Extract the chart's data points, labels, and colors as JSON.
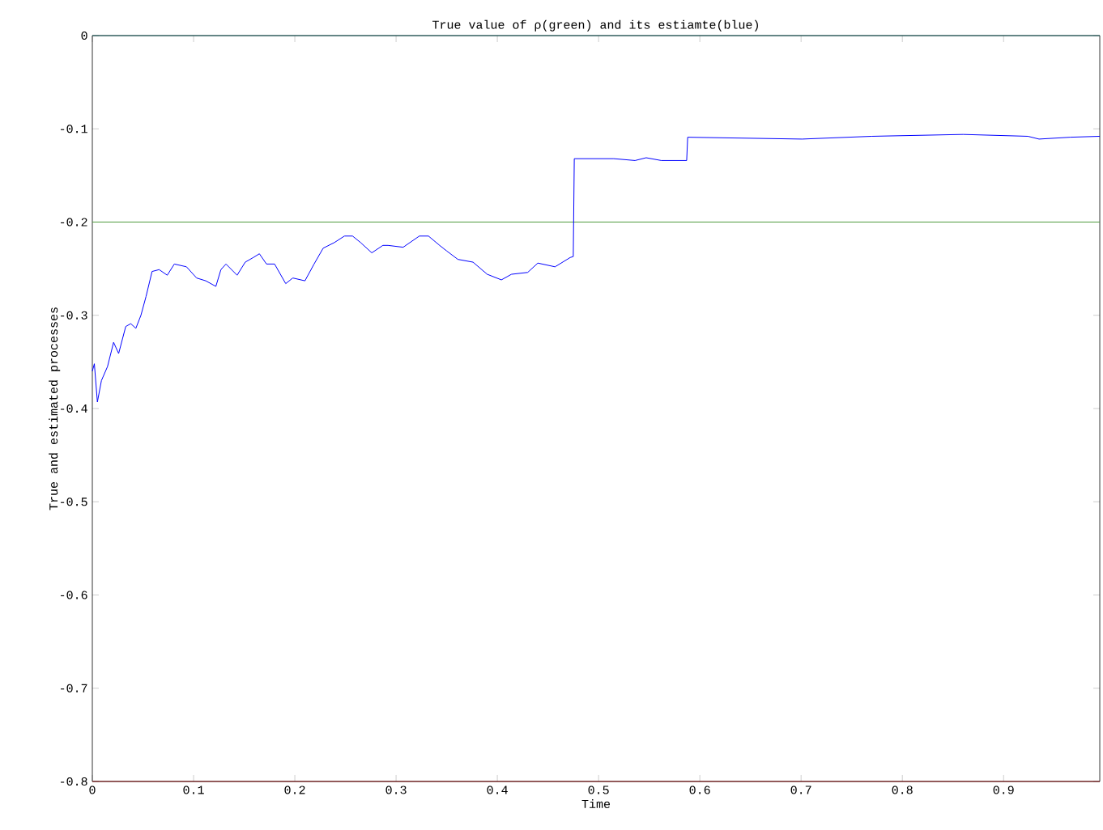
{
  "chart_data": {
    "type": "line",
    "title": "True value of ρ(green) and its estiamte(blue)",
    "xlabel": "Time",
    "ylabel": "True and estimated processes",
    "xlim": [
      0,
      0.995
    ],
    "ylim": [
      -0.8,
      0
    ],
    "xticks": [
      0,
      0.1,
      0.2,
      0.3,
      0.4,
      0.5,
      0.6,
      0.7,
      0.8,
      0.9
    ],
    "yticks": [
      -0.8,
      -0.7,
      -0.6,
      -0.5,
      -0.4,
      -0.3,
      -0.2,
      -0.1,
      0
    ],
    "grid": false,
    "marker": "none",
    "line_style": "solid",
    "series": [
      {
        "color": "#2f7070",
        "x": [
          0,
          0.995
        ],
        "values": [
          0,
          0
        ]
      },
      {
        "color": "#8b1a1a",
        "x": [
          0,
          0.995
        ],
        "values": [
          -0.8,
          -0.8
        ]
      },
      {
        "color": "#4c9a3c",
        "x": [
          0,
          0.995
        ],
        "values": [
          -0.2,
          -0.2
        ]
      },
      {
        "color": "#0000ff",
        "x": [
          0,
          0.002,
          0.005,
          0.009,
          0.015,
          0.021,
          0.026,
          0.033,
          0.038,
          0.043,
          0.048,
          0.053,
          0.059,
          0.066,
          0.074,
          0.081,
          0.093,
          0.103,
          0.112,
          0.122,
          0.127,
          0.132,
          0.143,
          0.151,
          0.159,
          0.165,
          0.172,
          0.18,
          0.191,
          0.198,
          0.21,
          0.219,
          0.228,
          0.239,
          0.249,
          0.257,
          0.265,
          0.276,
          0.287,
          0.292,
          0.307,
          0.323,
          0.332,
          0.343,
          0.35,
          0.361,
          0.376,
          0.39,
          0.404,
          0.414,
          0.43,
          0.44,
          0.457,
          0.472,
          0.475,
          0.476,
          0.515,
          0.536,
          0.547,
          0.562,
          0.587,
          0.588,
          0.701,
          0.77,
          0.86,
          0.924,
          0.935,
          0.966,
          0.995
        ],
        "values": [
          -0.36,
          -0.352,
          -0.393,
          -0.37,
          -0.355,
          -0.329,
          -0.341,
          -0.312,
          -0.309,
          -0.314,
          -0.3,
          -0.28,
          -0.253,
          -0.251,
          -0.257,
          -0.245,
          -0.248,
          -0.26,
          -0.263,
          -0.269,
          -0.251,
          -0.245,
          -0.257,
          -0.243,
          -0.238,
          -0.234,
          -0.245,
          -0.245,
          -0.266,
          -0.26,
          -0.263,
          -0.245,
          -0.228,
          -0.222,
          -0.215,
          -0.215,
          -0.222,
          -0.233,
          -0.225,
          -0.225,
          -0.227,
          -0.215,
          -0.215,
          -0.225,
          -0.231,
          -0.24,
          -0.243,
          -0.256,
          -0.262,
          -0.256,
          -0.254,
          -0.244,
          -0.248,
          -0.238,
          -0.237,
          -0.132,
          -0.132,
          -0.134,
          -0.131,
          -0.134,
          -0.134,
          -0.109,
          -0.111,
          -0.108,
          -0.106,
          -0.108,
          -0.111,
          -0.109,
          -0.108
        ]
      }
    ]
  }
}
